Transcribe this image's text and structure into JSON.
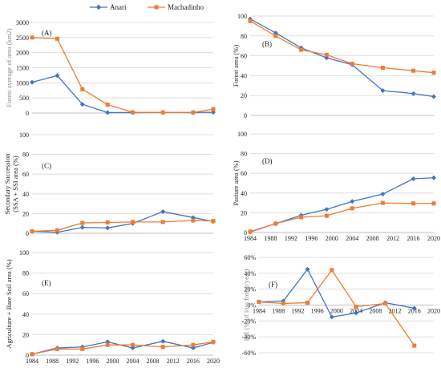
{
  "legend": [
    {
      "name": "Anari",
      "color": "#4472C4",
      "marker": "diamond"
    },
    {
      "name": "Machadinho",
      "color": "#ED7D31",
      "marker": "square"
    }
  ],
  "chart_data": [
    {
      "type": "line",
      "panel_label": "(A)",
      "ylabel": "Forest average of area (km2)",
      "x": [
        1984,
        1989,
        1994,
        1999,
        2004,
        2010,
        2016,
        2020
      ],
      "ylim": [
        0,
        3000
      ],
      "yticks": [
        0,
        500,
        1000,
        1500,
        2000,
        2500,
        3000
      ],
      "xticks": [],
      "grid": true,
      "series": [
        {
          "name": "Anari",
          "values": [
            1020,
            1240,
            290,
            15,
            15,
            20,
            20,
            25
          ]
        },
        {
          "name": "Machadinho",
          "values": [
            2500,
            2460,
            790,
            280,
            25,
            20,
            20,
            130
          ]
        }
      ]
    },
    {
      "type": "line",
      "panel_label": "(B)",
      "ylabel": "Forest area (%)",
      "x": [
        1984,
        1989,
        1994,
        1999,
        2004,
        2010,
        2016,
        2020
      ],
      "ylim": [
        0,
        100
      ],
      "yticks": [
        0,
        20,
        40,
        60,
        80,
        100
      ],
      "xticks": [],
      "grid": true,
      "series": [
        {
          "name": "Anari",
          "values": [
            97,
            83,
            68,
            58,
            51,
            25,
            22,
            19
          ]
        },
        {
          "name": "Machadinho",
          "values": [
            95,
            80,
            66,
            61,
            52,
            48,
            45,
            43
          ]
        }
      ]
    },
    {
      "type": "line",
      "panel_label": "(C)",
      "ylabel": "Secondary Succession (SSA + SSI  area (%)",
      "x": [
        1984,
        1989,
        1994,
        1999,
        2004,
        2010,
        2016,
        2020
      ],
      "ylim": [
        0,
        100
      ],
      "yticks": [
        0,
        20,
        40,
        60,
        80,
        100
      ],
      "xticks": [],
      "grid": true,
      "series": [
        {
          "name": "Anari",
          "values": [
            2,
            1,
            6,
            5.5,
            10,
            22,
            16,
            12
          ]
        },
        {
          "name": "Machadinho",
          "values": [
            2,
            3,
            10.5,
            11,
            11.5,
            11.5,
            13,
            12.5
          ]
        }
      ]
    },
    {
      "type": "line",
      "panel_label": "(D)",
      "ylabel": "Pasture area (%)",
      "x": [
        1984,
        1989,
        1994,
        1999,
        2004,
        2010,
        2016,
        2020
      ],
      "ylim": [
        0,
        100
      ],
      "yticks": [
        0,
        20,
        40,
        60,
        80,
        100
      ],
      "xticks": [
        1984,
        1988,
        1992,
        1996,
        2000,
        2004,
        2008,
        2012,
        2016,
        2020
      ],
      "grid": true,
      "series": [
        {
          "name": "Anari",
          "values": [
            0.5,
            9,
            17.5,
            23.5,
            31.5,
            39,
            54.5,
            55.5
          ]
        },
        {
          "name": "Machadinho",
          "values": [
            1,
            9,
            15.5,
            17,
            24.5,
            30,
            29.5,
            29.5
          ]
        }
      ]
    },
    {
      "type": "line",
      "panel_label": "(E)",
      "ylabel": "Agriculture + Bare Soil area (%)",
      "x": [
        1984,
        1989,
        1994,
        1999,
        2004,
        2010,
        2016,
        2020
      ],
      "ylim": [
        0,
        100
      ],
      "yticks": [
        0,
        20,
        40,
        60,
        80,
        100
      ],
      "xticks": [
        1984,
        1988,
        1992,
        1996,
        2000,
        2004,
        2008,
        2012,
        2016,
        2020
      ],
      "grid": true,
      "series": [
        {
          "name": "Anari",
          "values": [
            1,
            7,
            8,
            13,
            7,
            13.5,
            7,
            12.5
          ]
        },
        {
          "name": "Machadinho",
          "values": [
            1,
            6,
            6,
            10,
            10,
            8,
            10,
            13
          ]
        }
      ]
    },
    {
      "type": "line",
      "panel_label": "(F)",
      "ylabel": "DR (% of loss forest/year)",
      "x_series": [
        1984,
        1989,
        1994,
        1999,
        2004,
        2010,
        2016
      ],
      "ylim": [
        -60,
        60
      ],
      "yticks": [
        "-60%",
        "-40%",
        "-20%",
        "0%",
        "20%",
        "40%",
        "60%"
      ],
      "ytick_values": [
        -60,
        -40,
        -20,
        0,
        20,
        40,
        60
      ],
      "xticks": [
        1984,
        1988,
        1992,
        1996,
        2000,
        2004,
        2008,
        2012,
        2016,
        2020
      ],
      "grid": true,
      "series": [
        {
          "name": "Anari",
          "x": [
            1984,
            1989,
            1994,
            1999,
            2004,
            2010,
            2016
          ],
          "values": [
            4,
            5,
            45,
            -15,
            -10,
            3,
            -4
          ]
        },
        {
          "name": "Machadinho",
          "x": [
            1984,
            1989,
            1994,
            1999,
            2004,
            2010,
            2016
          ],
          "values": [
            4,
            2,
            3,
            44,
            -2,
            2,
            -51
          ]
        }
      ]
    }
  ]
}
